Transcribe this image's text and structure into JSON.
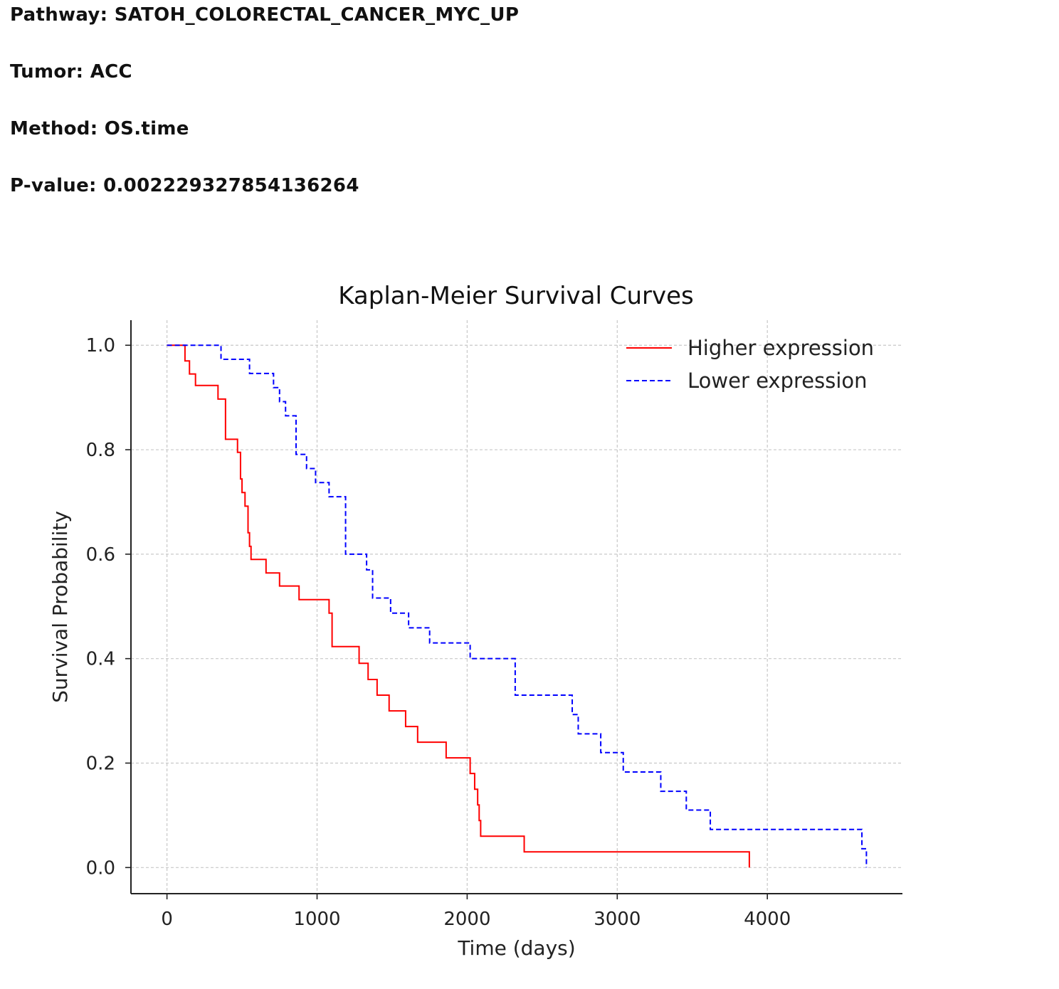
{
  "header": {
    "pathway_label": "Pathway:",
    "pathway_value": "SATOH_COLORECTAL_CANCER_MYC_UP",
    "tumor_label": "Tumor:",
    "tumor_value": "ACC",
    "method_label": "Method:",
    "method_value": "OS.time",
    "pvalue_label": "P-value:",
    "pvalue_value": "0.002229327854136264"
  },
  "chart_data": {
    "type": "line",
    "step": true,
    "title": "Kaplan-Meier Survival Curves",
    "xlabel": "Time (days)",
    "ylabel": "Survival Probability",
    "xlim": [
      -240,
      4900
    ],
    "ylim": [
      -0.05,
      1.048
    ],
    "xticks": [
      0,
      1000,
      2000,
      3000,
      4000
    ],
    "xtick_labels": [
      "0",
      "1000",
      "2000",
      "3000",
      "4000"
    ],
    "yticks": [
      0,
      0.2,
      0.4,
      0.6,
      0.8,
      1.0
    ],
    "ytick_labels": [
      "0.0",
      "0.2",
      "0.4",
      "0.6",
      "0.8",
      "1.0"
    ],
    "grid": true,
    "legend_position": "top-right",
    "series": [
      {
        "name": "Higher expression",
        "color": "#ff0000",
        "dash": "solid",
        "x": [
          0,
          120,
          150,
          190,
          340,
          390,
          470,
          490,
          500,
          520,
          540,
          550,
          560,
          570,
          660,
          750,
          880,
          1080,
          1100,
          1280,
          1340,
          1400,
          1480,
          1590,
          1670,
          1860,
          2020,
          2050,
          2070,
          2080,
          2090,
          2110,
          2380,
          3880
        ],
        "y": [
          1.0,
          0.97,
          0.945,
          0.923,
          0.897,
          0.82,
          0.795,
          0.744,
          0.718,
          0.692,
          0.641,
          0.615,
          0.59,
          0.59,
          0.564,
          0.539,
          0.513,
          0.487,
          0.423,
          0.391,
          0.36,
          0.33,
          0.3,
          0.27,
          0.24,
          0.21,
          0.18,
          0.15,
          0.12,
          0.09,
          0.06,
          0.06,
          0.03,
          0.0
        ]
      },
      {
        "name": "Lower expression",
        "color": "#0000ff",
        "dash": "dashed",
        "x": [
          0,
          360,
          550,
          710,
          750,
          790,
          860,
          930,
          990,
          1080,
          1190,
          1330,
          1370,
          1490,
          1610,
          1750,
          2020,
          2320,
          2700,
          2740,
          2890,
          3040,
          3290,
          3460,
          3620,
          4630,
          4660
        ],
        "y": [
          1.0,
          0.973,
          0.946,
          0.919,
          0.892,
          0.865,
          0.791,
          0.764,
          0.737,
          0.71,
          0.6,
          0.57,
          0.516,
          0.487,
          0.459,
          0.43,
          0.4,
          0.33,
          0.293,
          0.256,
          0.22,
          0.183,
          0.146,
          0.11,
          0.073,
          0.036,
          0.0
        ]
      }
    ]
  }
}
